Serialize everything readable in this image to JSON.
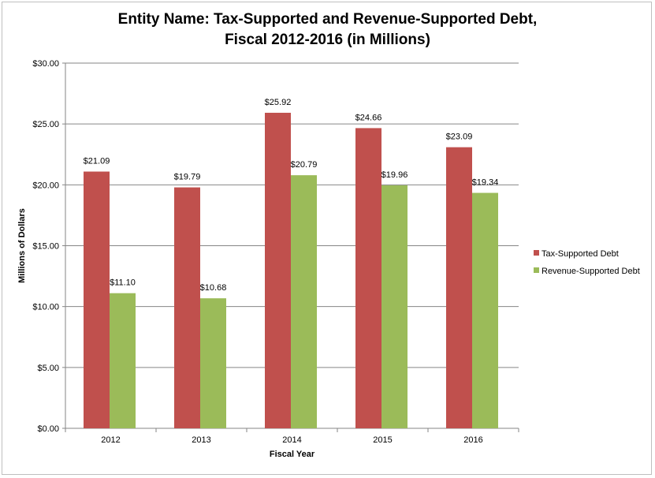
{
  "chart_data": {
    "type": "bar",
    "title_line1": "Entity Name: Tax-Supported and Revenue-Supported Debt,",
    "title_line2": "Fiscal 2012-2016 (in Millions)",
    "xlabel": "Fiscal Year",
    "ylabel": "Millions of Dollars",
    "categories": [
      "2012",
      "2013",
      "2014",
      "2015",
      "2016"
    ],
    "ylim": [
      0,
      30
    ],
    "yticks": [
      0,
      5,
      10,
      15,
      20,
      25,
      30
    ],
    "ytick_labels": [
      "$0.00",
      "$5.00",
      "$10.00",
      "$15.00",
      "$20.00",
      "$25.00",
      "$30.00"
    ],
    "grid": true,
    "legend_position": "right",
    "series": [
      {
        "name": "Tax-Supported Debt",
        "color": "#c0504d",
        "values": [
          21.09,
          19.79,
          25.92,
          24.66,
          23.09
        ],
        "labels": [
          "$21.09",
          "$19.79",
          "$25.92",
          "$24.66",
          "$23.09"
        ]
      },
      {
        "name": "Revenue-Supported Debt",
        "color": "#9bbb59",
        "values": [
          11.1,
          10.68,
          20.79,
          19.96,
          19.34
        ],
        "labels": [
          "$11.10",
          "$10.68",
          "$20.79",
          "$19.96",
          "$19.34"
        ]
      }
    ]
  }
}
